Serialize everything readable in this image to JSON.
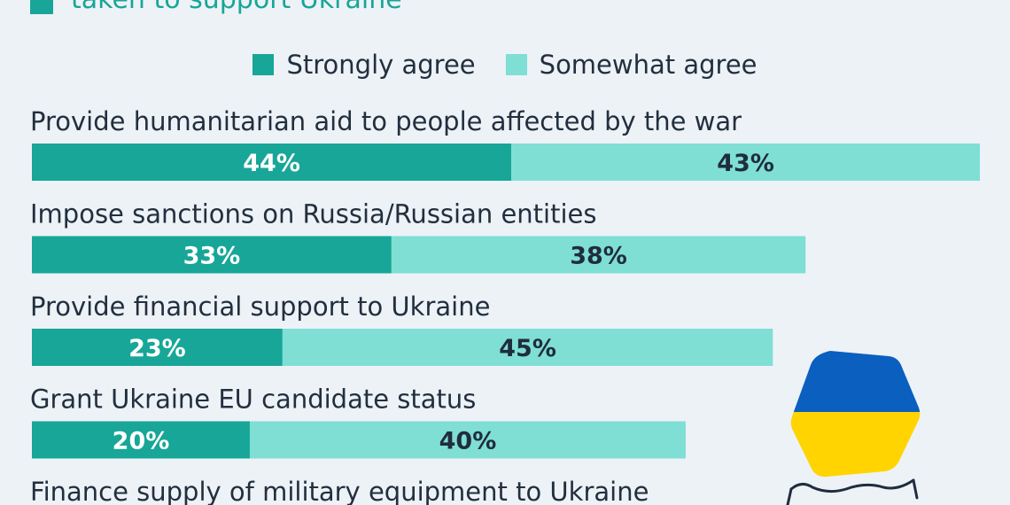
{
  "header": {
    "title_fragment": "taken to support Ukraine"
  },
  "colors": {
    "strong": "#17a697",
    "somewhat": "#7fdfd4",
    "label_on_strong": "#ffffff",
    "label_on_somewhat": "#1f2d3d",
    "flag_blue": "#0a5fbf",
    "flag_yellow": "#ffd400"
  },
  "chart_data": {
    "type": "bar",
    "orientation": "horizontal",
    "stacked": true,
    "categories": [
      "Provide humanitarian aid to people affected by the war",
      "Impose sanctions on Russia/Russian entities",
      "Provide financial support to Ukraine",
      "Grant Ukraine EU candidate status",
      "Finance supply of military equipment to Ukraine"
    ],
    "series": [
      {
        "name": "Strongly agree",
        "values": [
          44,
          33,
          23,
          20,
          null
        ]
      },
      {
        "name": "Somewhat agree",
        "values": [
          43,
          38,
          45,
          40,
          null
        ]
      }
    ],
    "value_suffix": "%",
    "xlim": [
      0,
      87
    ],
    "legend": "top-center",
    "grid": false
  },
  "icons": {
    "flag": "ukraine-flag-icon",
    "hands": "hands-icon"
  }
}
